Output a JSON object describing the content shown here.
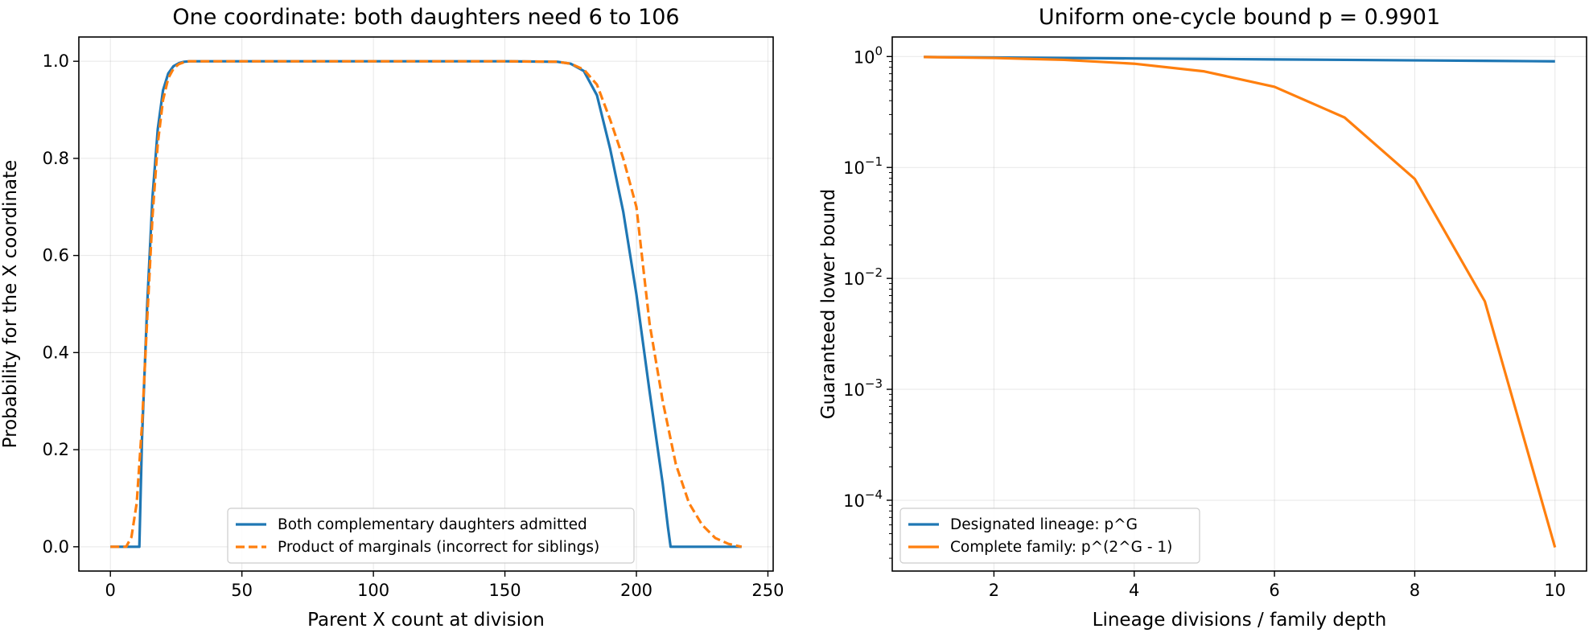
{
  "chart_data": [
    {
      "type": "line",
      "title": "One coordinate: both daughters need 6 to 106",
      "xlabel": "Parent X count at division",
      "ylabel": "Probability for the X coordinate",
      "xlim": [
        -12,
        252
      ],
      "ylim": [
        -0.05,
        1.05
      ],
      "xticks": [
        0,
        50,
        100,
        150,
        200,
        250
      ],
      "yticks": [
        0.0,
        0.2,
        0.4,
        0.6,
        0.8,
        1.0
      ],
      "xtick_labels": [
        "0",
        "50",
        "100",
        "150",
        "200",
        "250"
      ],
      "ytick_labels": [
        "0.0",
        "0.2",
        "0.4",
        "0.6",
        "0.8",
        "1.0"
      ],
      "grid": true,
      "legend_position": "lower-center",
      "series": [
        {
          "name": "Both complementary daughters admitted",
          "color": "#1f77b4",
          "style": "solid",
          "x": [
            0,
            11,
            12,
            14,
            16,
            18,
            20,
            22,
            24,
            26,
            28,
            30,
            40,
            150,
            170,
            175,
            180,
            185,
            190,
            195,
            200,
            205,
            210,
            212,
            213,
            240
          ],
          "y": [
            0.0,
            0.0,
            0.22,
            0.5,
            0.72,
            0.86,
            0.94,
            0.975,
            0.99,
            0.996,
            0.999,
            1.0,
            1.0,
            1.0,
            0.999,
            0.995,
            0.98,
            0.93,
            0.82,
            0.69,
            0.52,
            0.32,
            0.13,
            0.04,
            0.0,
            0.0
          ]
        },
        {
          "name": "Product of marginals (incorrect for siblings)",
          "color": "#ff7f0e",
          "style": "dashed",
          "x": [
            0,
            6,
            8,
            10,
            12,
            14,
            16,
            18,
            20,
            22,
            24,
            26,
            28,
            30,
            40,
            150,
            170,
            175,
            180,
            185,
            190,
            195,
            200,
            205,
            210,
            215,
            220,
            225,
            230,
            235,
            240
          ],
          "y": [
            0.0,
            0.0,
            0.02,
            0.09,
            0.25,
            0.47,
            0.68,
            0.83,
            0.92,
            0.965,
            0.985,
            0.994,
            0.998,
            1.0,
            1.0,
            1.0,
            0.999,
            0.995,
            0.983,
            0.952,
            0.88,
            0.8,
            0.7,
            0.46,
            0.3,
            0.17,
            0.09,
            0.045,
            0.018,
            0.006,
            0.0
          ]
        }
      ]
    },
    {
      "type": "line",
      "title": "Uniform one-cycle bound p = 0.9901",
      "xlabel": "Lineage divisions / family depth",
      "ylabel": "Guaranteed lower bound",
      "yscale": "log",
      "xlim": [
        0.55,
        10.45
      ],
      "ylim": [
        2.3e-05,
        1.5
      ],
      "xticks": [
        2,
        4,
        6,
        8,
        10
      ],
      "xtick_labels": [
        "2",
        "4",
        "6",
        "8",
        "10"
      ],
      "yticks": [
        1,
        0.1,
        0.01,
        0.001,
        0.0001
      ],
      "ytick_labels": [
        {
          "base": "10",
          "exp": "0"
        },
        {
          "base": "10",
          "exp": "−1"
        },
        {
          "base": "10",
          "exp": "−2"
        },
        {
          "base": "10",
          "exp": "−3"
        },
        {
          "base": "10",
          "exp": "−4"
        }
      ],
      "grid": true,
      "legend_position": "lower-left",
      "series": [
        {
          "name": "Designated lineage: p^G",
          "color": "#1f77b4",
          "style": "solid",
          "x": [
            1,
            2,
            3,
            4,
            5,
            6,
            7,
            8,
            9,
            10
          ],
          "y": [
            0.9901,
            0.9803,
            0.9706,
            0.961,
            0.9515,
            0.9421,
            0.9327,
            0.9235,
            0.9143,
            0.9053
          ]
        },
        {
          "name": "Complete family: p^(2^G - 1)",
          "color": "#ff7f0e",
          "style": "solid",
          "x": [
            1,
            2,
            3,
            4,
            5,
            6,
            7,
            8,
            9,
            10
          ],
          "y": [
            0.9901,
            0.9706,
            0.9327,
            0.8615,
            0.7346,
            0.5335,
            0.2819,
            0.0789,
            0.0062,
            3.76e-05
          ]
        }
      ]
    }
  ]
}
